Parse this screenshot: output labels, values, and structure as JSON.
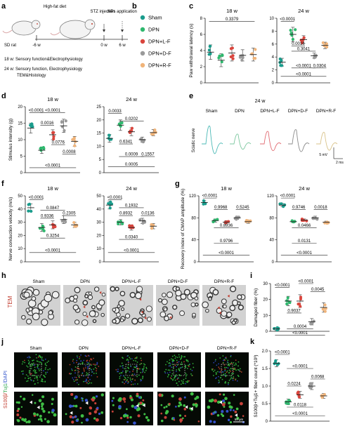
{
  "colors": {
    "Sham": "#1a9c8c",
    "DPN": "#2fb86e",
    "DPN+L-F": "#d9453d",
    "DPN+D-F": "#9a9a9a",
    "DPN+R-F": "#f0b47a",
    "tem_red": "#c0392b"
  },
  "panel_letters": {
    "a": "a",
    "b": "b",
    "c": "c",
    "d": "d",
    "e": "e",
    "f": "f",
    "g": "g",
    "h": "h",
    "i": "i",
    "j": "j",
    "k": "k"
  },
  "groups": [
    "Sham",
    "DPN",
    "DPN+L-F",
    "DPN+D-F",
    "DPN+R-F"
  ],
  "panel_a": {
    "high_fat_diet": "High-fat diet",
    "stz_injection": "STZ injection",
    "nps_application": "NPs application",
    "w_minus6": "-6 w",
    "w0": "0 w",
    "w6": "6 w",
    "sd_rat": "SD rat",
    "line18": "18 w: Sensory function&Electrophysiology",
    "line24a": "24 w: Sensory function, Electrophysiology",
    "line24b": "TEM&Histology"
  },
  "panel_e": {
    "title": "24 w",
    "sciatic": "Sciatic nerve",
    "scale_v": "5 mV",
    "scale_t": "2 ms"
  },
  "panel_h": {
    "side": "TEM"
  },
  "panel_j": {
    "side_a": "S100β/",
    "side_b": "Tuj1",
    "side_c": "/DAPI",
    "scale": "50 μm"
  },
  "chart_data": [
    {
      "panel": "c",
      "type": "scatter",
      "title": "18 w",
      "ylabel": "Paw withdrawal latency (s)",
      "ylim": [
        0,
        8
      ],
      "yticks": [
        "0",
        "2",
        "4",
        "6",
        "8"
      ],
      "means": [
        3.8,
        2.8,
        3.7,
        3.4,
        3.5
      ],
      "errors": [
        0.9,
        0.8,
        1.0,
        0.7,
        0.8
      ],
      "annotations": [
        {
          "text": "0.3379",
          "from": 0,
          "to": 4,
          "y": 7.6
        }
      ]
    },
    {
      "panel": "c",
      "type": "scatter",
      "title": "24 w",
      "ylabel": "",
      "ylim": [
        0,
        10
      ],
      "yticks": [
        "0",
        "2",
        "4",
        "6",
        "8",
        "10"
      ],
      "means": [
        3.2,
        7.5,
        6.7,
        4.2,
        5.8
      ],
      "errors": [
        0.6,
        1.1,
        0.6,
        0.4,
        0.5
      ],
      "annotations": [
        {
          "text": "<0.0001",
          "from": 0,
          "to": 1,
          "y": 9.5
        },
        {
          "text": "0.0016",
          "from": 1,
          "to": 2,
          "y": 5.7
        },
        {
          "text": "0.3041",
          "from": 1,
          "to": 3,
          "y": 4.9
        },
        {
          "text": "<0.0001",
          "from": 1,
          "to": 3,
          "y": 2.3
        },
        {
          "text": "0.0304",
          "from": 3,
          "to": 4,
          "y": 2.3
        },
        {
          "text": "<0.0001",
          "from": 0,
          "to": 4,
          "y": 1.0
        }
      ]
    },
    {
      "panel": "d",
      "type": "scatter",
      "title": "18 w",
      "ylabel": "Stimulus intensity (g)",
      "ylim": [
        0,
        20
      ],
      "yticks": [
        "0",
        "5",
        "10",
        "15",
        "20"
      ],
      "means": [
        13.5,
        6.8,
        11.5,
        14.2,
        9.5
      ],
      "errors": [
        1.5,
        1.0,
        1.5,
        2.0,
        1.5
      ],
      "annotations": [
        {
          "text": "<0.0001",
          "from": 0,
          "to": 1,
          "y": 18.2
        },
        {
          "text": "<0.0001",
          "from": 1,
          "to": 3,
          "y": 18.2
        },
        {
          "text": "0.0016",
          "from": 1,
          "to": 2,
          "y": 14.4
        },
        {
          "text": "0.0776",
          "from": 2,
          "to": 3,
          "y": 8.5
        },
        {
          "text": "0.0008",
          "from": 3,
          "to": 4,
          "y": 5.6
        },
        {
          "text": "<0.0001",
          "from": 0,
          "to": 4,
          "y": 1.5
        }
      ]
    },
    {
      "panel": "d",
      "type": "scatter",
      "title": "24 w",
      "ylabel": "",
      "ylim": [
        0,
        25
      ],
      "yticks": [
        "0",
        "5",
        "10",
        "15",
        "20",
        "25"
      ],
      "means": [
        13.0,
        18.0,
        15.5,
        12.5,
        15.2
      ],
      "errors": [
        1.5,
        2.0,
        1.5,
        1.0,
        1.2
      ],
      "annotations": [
        {
          "text": "0.0033",
          "from": 0,
          "to": 1,
          "y": 22.5
        },
        {
          "text": "0.0202",
          "from": 1,
          "to": 3,
          "y": 19.5
        },
        {
          "text": "0.6341",
          "from": 1,
          "to": 2,
          "y": 10.9
        },
        {
          "text": "0.0009",
          "from": 1,
          "to": 3,
          "y": 6.1
        },
        {
          "text": "0.1557",
          "from": 3,
          "to": 4,
          "y": 6.1
        },
        {
          "text": "0.0005",
          "from": 0,
          "to": 4,
          "y": 2.3
        }
      ]
    },
    {
      "panel": "f",
      "type": "scatter",
      "title": "18 w",
      "ylabel": "Nerve conduction velocity (m/s)",
      "ylim": [
        0,
        50
      ],
      "yticks": [
        "0",
        "10",
        "20",
        "30",
        "40",
        "50"
      ],
      "means": [
        41,
        26,
        28,
        32,
        28
      ],
      "errors": [
        3,
        3,
        3,
        3,
        2
      ],
      "annotations": [
        {
          "text": "<0.0001",
          "from": 0,
          "to": 1,
          "y": 47
        },
        {
          "text": "0.0847",
          "from": 1,
          "to": 3,
          "y": 39
        },
        {
          "text": "0.2305",
          "from": 3,
          "to": 4,
          "y": 35
        },
        {
          "text": "0.9336",
          "from": 1,
          "to": 2,
          "y": 33
        },
        {
          "text": "0.3254",
          "from": 1,
          "to": 3,
          "y": 18
        },
        {
          "text": "<0.0001",
          "from": 0,
          "to": 4,
          "y": 7
        }
      ]
    },
    {
      "panel": "f",
      "type": "scatter",
      "title": "24 w",
      "ylabel": "",
      "ylim": [
        0,
        50
      ],
      "yticks": [
        "0",
        "10",
        "20",
        "30",
        "40",
        "50"
      ],
      "means": [
        43,
        30,
        26,
        31,
        27
      ],
      "errors": [
        3,
        2,
        2,
        2,
        2
      ],
      "annotations": [
        {
          "text": "<0.0001",
          "from": 0,
          "to": 1,
          "y": 47
        },
        {
          "text": "0.1932",
          "from": 1,
          "to": 3,
          "y": 41
        },
        {
          "text": "0.0136",
          "from": 3,
          "to": 4,
          "y": 35
        },
        {
          "text": "0.8932",
          "from": 1,
          "to": 2,
          "y": 35
        },
        {
          "text": "0.0340",
          "from": 1,
          "to": 3,
          "y": 17
        },
        {
          "text": "<0.0001",
          "from": 0,
          "to": 4,
          "y": 7
        }
      ]
    },
    {
      "panel": "g",
      "type": "scatter",
      "title": "18 w",
      "ylabel": "Recovery index of CMAP amplitude (%)",
      "ylim": [
        0,
        120
      ],
      "yticks": [
        "0",
        "40",
        "80",
        "120"
      ],
      "means": [
        108,
        75,
        72,
        80,
        73
      ],
      "errors": [
        4,
        3,
        3,
        3,
        3
      ],
      "annotations": [
        {
          "text": "<0.0001",
          "from": 0,
          "to": 1,
          "y": 116
        },
        {
          "text": "0.9968",
          "from": 1,
          "to": 2,
          "y": 95
        },
        {
          "text": "0.5245",
          "from": 3,
          "to": 4,
          "y": 95
        },
        {
          "text": "0.8936",
          "from": 1,
          "to": 3,
          "y": 62
        },
        {
          "text": "0.9796",
          "from": 1,
          "to": 3,
          "y": 34
        },
        {
          "text": "<0.0001",
          "from": 0,
          "to": 4,
          "y": 12
        }
      ]
    },
    {
      "panel": "g",
      "type": "scatter",
      "title": "24 w",
      "ylabel": "",
      "ylim": [
        0,
        120
      ],
      "yticks": [
        "0",
        "40",
        "80",
        "120"
      ],
      "means": [
        103,
        73,
        76,
        80,
        72
      ],
      "errors": [
        3,
        2,
        2,
        3,
        2
      ],
      "annotations": [
        {
          "text": "<0.0001",
          "from": 0,
          "to": 1,
          "y": 116
        },
        {
          "text": "0.9746",
          "from": 1,
          "to": 2,
          "y": 95
        },
        {
          "text": "0.0018",
          "from": 3,
          "to": 4,
          "y": 95
        },
        {
          "text": "0.0466",
          "from": 1,
          "to": 3,
          "y": 62
        },
        {
          "text": "0.0131",
          "from": 1,
          "to": 3,
          "y": 34
        },
        {
          "text": "<0.0001",
          "from": 0,
          "to": 4,
          "y": 12
        }
      ]
    },
    {
      "panel": "i",
      "type": "scatter",
      "title": "",
      "ylabel": "Damaged fiber (%)",
      "ylim": [
        0,
        30
      ],
      "yticks": [
        "0",
        "10",
        "20",
        "30"
      ],
      "means": [
        1.5,
        19,
        19,
        6,
        15
      ],
      "errors": [
        1,
        3,
        4,
        2,
        3
      ],
      "annotations": [
        {
          "text": "<0.0001",
          "from": 0,
          "to": 1,
          "y": 27.5
        },
        {
          "text": "0.9037",
          "from": 1,
          "to": 2,
          "y": 11.5
        },
        {
          "text": "<0.0001",
          "from": 2,
          "to": 3,
          "y": 30
        },
        {
          "text": "0.0045",
          "from": 3,
          "to": 4,
          "y": 25
        },
        {
          "text": "0.0004",
          "from": 1,
          "to": 3,
          "y": 1.5
        },
        {
          "text": "<0.0001",
          "from": 0,
          "to": 4,
          "y": -2.5
        }
      ]
    },
    {
      "panel": "k",
      "type": "scatter",
      "title": "",
      "ylabel": "S100β+Tuj1+ fiber count (*10³)",
      "ylim": [
        0,
        2.0
      ],
      "yticks": [
        "0",
        "0.5",
        "1.0",
        "1.5",
        "2.0"
      ],
      "means": [
        1.65,
        0.55,
        0.75,
        1.0,
        0.72
      ],
      "errors": [
        0.1,
        0.08,
        0.1,
        0.1,
        0.07
      ],
      "annotations": [
        {
          "text": "<0.0001",
          "from": 0,
          "to": 1,
          "y": 1.9
        },
        {
          "text": "<0.0001",
          "from": 1,
          "to": 3,
          "y": 1.5
        },
        {
          "text": "0.0068",
          "from": 3,
          "to": 4,
          "y": 1.2
        },
        {
          "text": "0.0224",
          "from": 1,
          "to": 2,
          "y": 1.0
        },
        {
          "text": "0.0118",
          "from": 1,
          "to": 3,
          "y": 0.4
        },
        {
          "text": "<0.0001",
          "from": 0,
          "to": 4,
          "y": 0.15
        }
      ]
    }
  ]
}
